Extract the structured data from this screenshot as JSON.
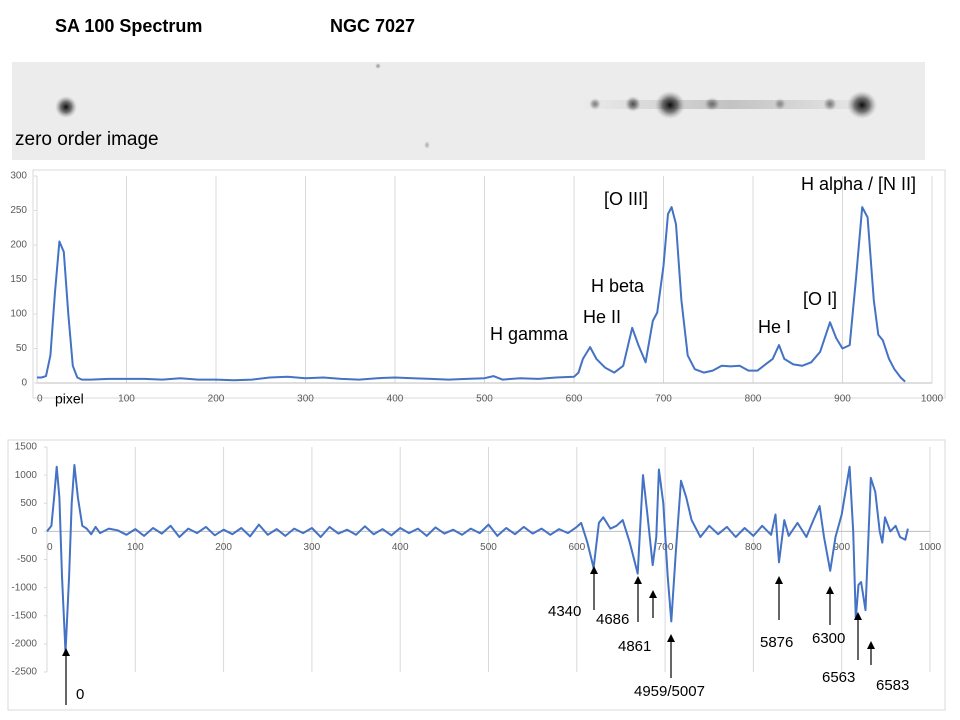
{
  "header": {
    "title": "SA 100 Spectrum",
    "object": "NGC 7027"
  },
  "image": {
    "label": "zero order image"
  },
  "chart_data": [
    {
      "type": "line",
      "xlabel": "pixel",
      "color": "#4472c4",
      "grid": "x",
      "x": [
        0,
        5,
        10,
        15,
        20,
        25,
        30,
        35,
        40,
        45,
        50,
        60,
        80,
        100,
        120,
        140,
        160,
        180,
        200,
        220,
        240,
        260,
        280,
        300,
        320,
        340,
        360,
        380,
        400,
        420,
        440,
        460,
        480,
        500,
        510,
        520,
        540,
        560,
        580,
        600,
        605,
        610,
        618,
        625,
        635,
        645,
        655,
        665,
        672,
        680,
        688,
        693,
        700,
        705,
        709,
        714,
        720,
        727,
        735,
        745,
        755,
        765,
        775,
        785,
        795,
        805,
        815,
        822,
        829,
        835,
        845,
        855,
        865,
        875,
        886,
        893,
        900,
        908,
        915,
        922,
        928,
        935,
        940,
        945,
        952,
        958,
        965,
        970
      ],
      "values": [
        8,
        8,
        10,
        40,
        130,
        205,
        190,
        100,
        25,
        8,
        5,
        5,
        6,
        6,
        6,
        5,
        7,
        5,
        5,
        4,
        5,
        8,
        9,
        7,
        8,
        6,
        5,
        7,
        8,
        7,
        6,
        5,
        6,
        7,
        10,
        5,
        7,
        6,
        8,
        9,
        15,
        35,
        52,
        35,
        22,
        15,
        25,
        80,
        55,
        30,
        90,
        102,
        170,
        245,
        255,
        230,
        120,
        40,
        20,
        15,
        18,
        25,
        24,
        25,
        18,
        18,
        28,
        35,
        55,
        35,
        27,
        25,
        30,
        45,
        88,
        65,
        50,
        55,
        150,
        255,
        240,
        120,
        70,
        62,
        35,
        20,
        8,
        2
      ],
      "xlim": [
        0,
        1000
      ],
      "xticks": [
        0,
        100,
        200,
        300,
        400,
        500,
        600,
        700,
        800,
        900,
        1000
      ],
      "ylim": [
        0,
        300
      ],
      "yticks": [
        0,
        50,
        100,
        150,
        200,
        250,
        300
      ],
      "annotations": [
        "H gamma",
        "He II",
        "H beta",
        "[O III]",
        "He I",
        "[O I]",
        "H alpha / [N II]"
      ]
    },
    {
      "type": "line",
      "color": "#4472c4",
      "grid": "x",
      "x": [
        0,
        5,
        8,
        11,
        14,
        17,
        21,
        25,
        28,
        31,
        35,
        40,
        45,
        50,
        55,
        60,
        70,
        80,
        90,
        100,
        110,
        120,
        130,
        140,
        150,
        160,
        170,
        180,
        190,
        200,
        210,
        220,
        230,
        240,
        250,
        260,
        270,
        280,
        290,
        300,
        310,
        320,
        330,
        340,
        350,
        360,
        370,
        380,
        390,
        400,
        410,
        420,
        430,
        440,
        450,
        460,
        470,
        480,
        490,
        500,
        510,
        520,
        530,
        540,
        550,
        560,
        570,
        580,
        590,
        600,
        605,
        612,
        619,
        625,
        630,
        638,
        645,
        652,
        660,
        669,
        675,
        680,
        686,
        690,
        693,
        698,
        703,
        707,
        712,
        718,
        724,
        730,
        740,
        750,
        760,
        770,
        780,
        790,
        800,
        810,
        820,
        825,
        829,
        835,
        840,
        850,
        860,
        868,
        875,
        880,
        887,
        893,
        900,
        909,
        913,
        916,
        919,
        922,
        927,
        930,
        933,
        938,
        943,
        946,
        949,
        955,
        961,
        966,
        972,
        975
      ],
      "values": [
        0,
        100,
        600,
        1150,
        600,
        -800,
        -2150,
        -800,
        500,
        1180,
        600,
        100,
        50,
        -50,
        80,
        -30,
        50,
        20,
        -60,
        40,
        -80,
        60,
        -40,
        100,
        -100,
        50,
        -30,
        80,
        -70,
        30,
        -50,
        60,
        -90,
        120,
        -60,
        40,
        -80,
        50,
        -30,
        60,
        -100,
        80,
        -40,
        30,
        -60,
        90,
        -50,
        40,
        -70,
        60,
        -30,
        50,
        -80,
        70,
        -40,
        30,
        -60,
        50,
        -30,
        120,
        -80,
        60,
        -50,
        80,
        -40,
        50,
        -60,
        40,
        -30,
        80,
        150,
        -200,
        -650,
        150,
        250,
        50,
        100,
        200,
        -200,
        -750,
        1000,
        300,
        -600,
        -100,
        1100,
        500,
        -800,
        -1600,
        -400,
        900,
        600,
        200,
        -100,
        100,
        -50,
        80,
        -100,
        60,
        -80,
        100,
        -60,
        300,
        -550,
        200,
        -80,
        150,
        -100,
        200,
        450,
        -100,
        -700,
        -100,
        300,
        1150,
        0,
        -1550,
        -950,
        -900,
        -1400,
        -200,
        950,
        700,
        0,
        -200,
        250,
        0,
        100,
        -100,
        -150,
        50
      ],
      "xlim": [
        0,
        1000
      ],
      "xticks": [
        0,
        100,
        200,
        300,
        400,
        500,
        600,
        700,
        800,
        900,
        1000
      ],
      "ylim": [
        -2500,
        1500
      ],
      "yticks": [
        -2500,
        -2000,
        -1500,
        -1000,
        -500,
        0,
        500,
        1000,
        1500
      ],
      "annotations": [
        "0",
        "4340",
        "4686",
        "4861",
        "4959/5007",
        "5876",
        "6300",
        "6563",
        "6583"
      ]
    }
  ]
}
